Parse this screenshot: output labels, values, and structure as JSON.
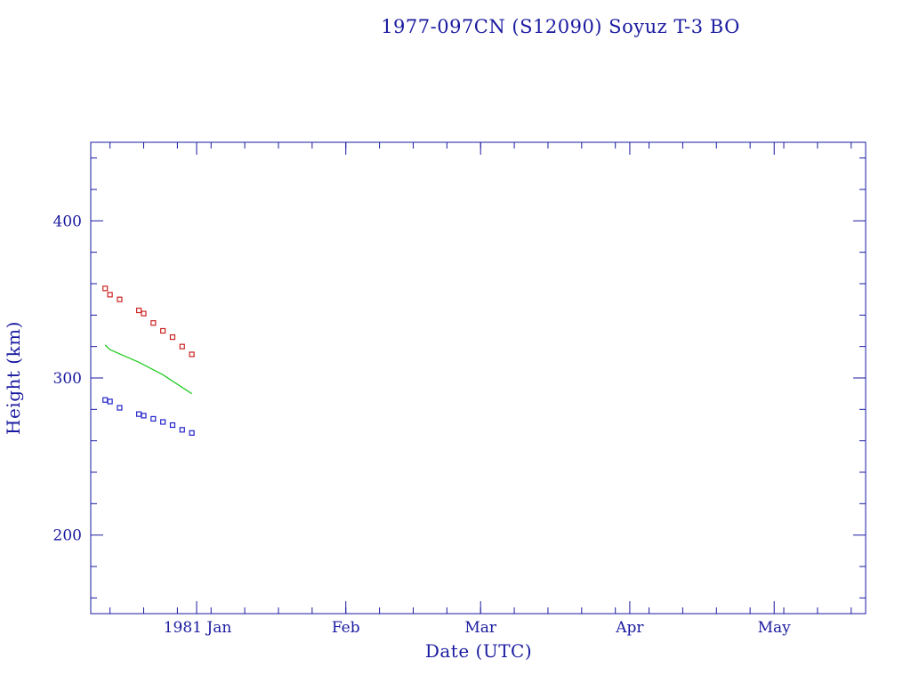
{
  "chart_data": {
    "type": "scatter",
    "title": "1977-097CN (S12090) Soyuz T-3 BO",
    "xlabel": "Date (UTC)",
    "ylabel": "Height (km)",
    "xlim": [
      "1980-12-10",
      "1981-05-20"
    ],
    "ylim": [
      150,
      450
    ],
    "x_ticks": [
      {
        "label": "1981 Jan",
        "date": "1981-01-01"
      },
      {
        "label": "Feb",
        "date": "1981-02-01"
      },
      {
        "label": "Mar",
        "date": "1981-03-01"
      },
      {
        "label": "Apr",
        "date": "1981-04-01"
      },
      {
        "label": "May",
        "date": "1981-05-01"
      }
    ],
    "y_ticks": [
      200,
      300,
      400
    ],
    "grid": false,
    "series": [
      {
        "color": "#cc2222",
        "marker": "square",
        "points": [
          {
            "x": "1980-12-13",
            "y": 357
          },
          {
            "x": "1980-12-14",
            "y": 353
          },
          {
            "x": "1980-12-16",
            "y": 350
          },
          {
            "x": "1980-12-20",
            "y": 343
          },
          {
            "x": "1980-12-21",
            "y": 341
          },
          {
            "x": "1980-12-23",
            "y": 335
          },
          {
            "x": "1980-12-25",
            "y": 330
          },
          {
            "x": "1980-12-27",
            "y": 326
          },
          {
            "x": "1980-12-29",
            "y": 320
          },
          {
            "x": "1980-12-31",
            "y": 315
          }
        ]
      },
      {
        "color": "#22cc22",
        "marker": "line",
        "points": [
          {
            "x": "1980-12-13",
            "y": 321
          },
          {
            "x": "1980-12-14",
            "y": 318
          },
          {
            "x": "1980-12-20",
            "y": 310
          },
          {
            "x": "1980-12-25",
            "y": 302
          },
          {
            "x": "1980-12-31",
            "y": 290
          }
        ]
      },
      {
        "color": "#2222cc",
        "marker": "square",
        "points": [
          {
            "x": "1980-12-13",
            "y": 286
          },
          {
            "x": "1980-12-14",
            "y": 285
          },
          {
            "x": "1980-12-16",
            "y": 281
          },
          {
            "x": "1980-12-20",
            "y": 277
          },
          {
            "x": "1980-12-21",
            "y": 276
          },
          {
            "x": "1980-12-23",
            "y": 274
          },
          {
            "x": "1980-12-25",
            "y": 272
          },
          {
            "x": "1980-12-27",
            "y": 270
          },
          {
            "x": "1980-12-29",
            "y": 267
          },
          {
            "x": "1980-12-31",
            "y": 265
          }
        ]
      }
    ],
    "text_color": "#1a1aa0"
  }
}
